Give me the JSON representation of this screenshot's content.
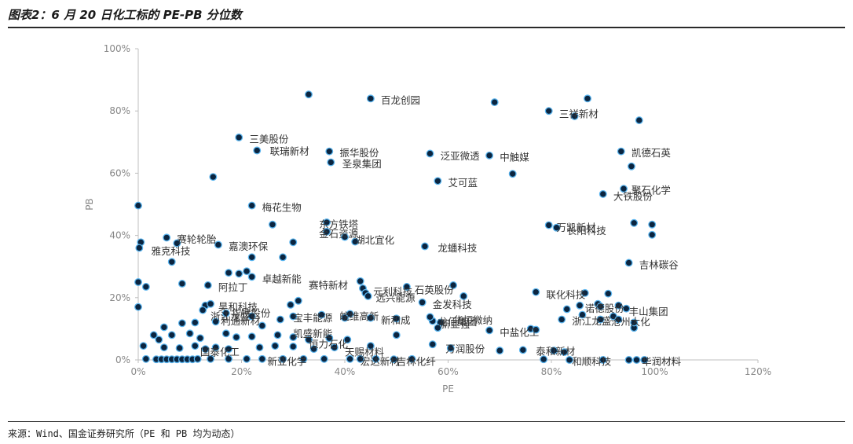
{
  "title": "图表2：6 月 20 日化工标的 PE-PB 分位数",
  "source": "来源：Wind、国金证券研究所（PE 和 PB 均为动态）",
  "colors": {
    "point_fill": "#0b2540",
    "point_stroke": "#5ab4ee",
    "axis": "#bfbfbf",
    "text": "#333333"
  },
  "chart_data": {
    "type": "scatter",
    "xlabel": "PE",
    "ylabel": "PB",
    "xlim": [
      0,
      120
    ],
    "ylim": [
      0,
      100
    ],
    "xticks": [
      0,
      20,
      40,
      60,
      80,
      100,
      120
    ],
    "yticks": [
      0,
      20,
      40,
      60,
      80,
      100
    ],
    "xtick_labels": [
      "0%",
      "20%",
      "40%",
      "60%",
      "80%",
      "100%",
      "120%"
    ],
    "ytick_labels": [
      "0%",
      "20%",
      "40%",
      "60%",
      "80%",
      "100%"
    ],
    "grid": false,
    "legend": "none",
    "points": [
      {
        "x": 33,
        "y": 85.3
      },
      {
        "x": 45,
        "y": 84
      },
      {
        "x": 69,
        "y": 82.8
      },
      {
        "x": 87,
        "y": 84
      },
      {
        "x": 79.5,
        "y": 80
      },
      {
        "x": 84.5,
        "y": 78.3
      },
      {
        "x": 97,
        "y": 77
      },
      {
        "x": 19.5,
        "y": 71.5
      },
      {
        "x": 23,
        "y": 67.3
      },
      {
        "x": 37,
        "y": 67
      },
      {
        "x": 37.3,
        "y": 63.5
      },
      {
        "x": 56.5,
        "y": 66.3
      },
      {
        "x": 68,
        "y": 65.7
      },
      {
        "x": 93.5,
        "y": 67
      },
      {
        "x": 95.5,
        "y": 62.2
      },
      {
        "x": 14.5,
        "y": 58.8
      },
      {
        "x": 72.5,
        "y": 59.8
      },
      {
        "x": 58,
        "y": 57.5
      },
      {
        "x": 94,
        "y": 55
      },
      {
        "x": 90,
        "y": 53.3
      },
      {
        "x": 0,
        "y": 49.6
      },
      {
        "x": 22,
        "y": 49.6
      },
      {
        "x": 36.5,
        "y": 44.2
      },
      {
        "x": 36.5,
        "y": 41.2
      },
      {
        "x": 26,
        "y": 43.5
      },
      {
        "x": 79.5,
        "y": 43.3
      },
      {
        "x": 81,
        "y": 42.5
      },
      {
        "x": 96,
        "y": 44
      },
      {
        "x": 99.5,
        "y": 43.5
      },
      {
        "x": 99.5,
        "y": 40.2
      },
      {
        "x": 40,
        "y": 39.5
      },
      {
        "x": 42,
        "y": 38
      },
      {
        "x": 5.5,
        "y": 39.3
      },
      {
        "x": 7.5,
        "y": 37.5
      },
      {
        "x": 0.5,
        "y": 37.8
      },
      {
        "x": 0.2,
        "y": 36
      },
      {
        "x": 15.5,
        "y": 37
      },
      {
        "x": 30,
        "y": 37.8
      },
      {
        "x": 55.5,
        "y": 36.5
      },
      {
        "x": 22,
        "y": 33
      },
      {
        "x": 28,
        "y": 33
      },
      {
        "x": 6.5,
        "y": 31.5
      },
      {
        "x": 95,
        "y": 31.2
      },
      {
        "x": 17.5,
        "y": 28
      },
      {
        "x": 19.5,
        "y": 27.7
      },
      {
        "x": 21,
        "y": 28.5
      },
      {
        "x": 22,
        "y": 26.7
      },
      {
        "x": 0,
        "y": 25
      },
      {
        "x": 1.5,
        "y": 23.5
      },
      {
        "x": 8.5,
        "y": 24.5
      },
      {
        "x": 13.5,
        "y": 24
      },
      {
        "x": 43,
        "y": 25.3
      },
      {
        "x": 43.5,
        "y": 23
      },
      {
        "x": 44,
        "y": 21.5
      },
      {
        "x": 44.5,
        "y": 20.5
      },
      {
        "x": 52,
        "y": 23.5
      },
      {
        "x": 61,
        "y": 24
      },
      {
        "x": 63,
        "y": 20.5
      },
      {
        "x": 77,
        "y": 21.8
      },
      {
        "x": 86.5,
        "y": 21.5
      },
      {
        "x": 91,
        "y": 21.3
      },
      {
        "x": 0,
        "y": 17
      },
      {
        "x": 13,
        "y": 17.5
      },
      {
        "x": 14,
        "y": 18
      },
      {
        "x": 12.5,
        "y": 16
      },
      {
        "x": 31,
        "y": 19
      },
      {
        "x": 29.5,
        "y": 17.7
      },
      {
        "x": 55,
        "y": 18.5
      },
      {
        "x": 83,
        "y": 16.3
      },
      {
        "x": 85.5,
        "y": 17.5
      },
      {
        "x": 89,
        "y": 18
      },
      {
        "x": 89.5,
        "y": 17.2
      },
      {
        "x": 93,
        "y": 17.5
      },
      {
        "x": 94.5,
        "y": 16.5
      },
      {
        "x": 5,
        "y": 10.5
      },
      {
        "x": 8.5,
        "y": 11.8
      },
      {
        "x": 11,
        "y": 12
      },
      {
        "x": 15,
        "y": 12.3
      },
      {
        "x": 17,
        "y": 15
      },
      {
        "x": 22,
        "y": 14
      },
      {
        "x": 24,
        "y": 11
      },
      {
        "x": 27.5,
        "y": 13
      },
      {
        "x": 30,
        "y": 14
      },
      {
        "x": 35.5,
        "y": 14.5
      },
      {
        "x": 40,
        "y": 13.5
      },
      {
        "x": 41,
        "y": 14.8
      },
      {
        "x": 45,
        "y": 13.5
      },
      {
        "x": 50,
        "y": 13.3
      },
      {
        "x": 57,
        "y": 12.5
      },
      {
        "x": 56.5,
        "y": 13.8
      },
      {
        "x": 58.5,
        "y": 12
      },
      {
        "x": 58,
        "y": 10.3
      },
      {
        "x": 68,
        "y": 9.5
      },
      {
        "x": 76,
        "y": 10
      },
      {
        "x": 77,
        "y": 9.7
      },
      {
        "x": 82,
        "y": 13
      },
      {
        "x": 86,
        "y": 14.5
      },
      {
        "x": 89.5,
        "y": 13
      },
      {
        "x": 92,
        "y": 14
      },
      {
        "x": 93,
        "y": 13
      },
      {
        "x": 96,
        "y": 10.3
      },
      {
        "x": 96,
        "y": 12
      },
      {
        "x": 3,
        "y": 8
      },
      {
        "x": 4,
        "y": 6.5
      },
      {
        "x": 6.5,
        "y": 8
      },
      {
        "x": 10,
        "y": 8.5
      },
      {
        "x": 12,
        "y": 7
      },
      {
        "x": 17,
        "y": 8.5
      },
      {
        "x": 19,
        "y": 7.3
      },
      {
        "x": 22,
        "y": 7.5
      },
      {
        "x": 27,
        "y": 8
      },
      {
        "x": 30,
        "y": 7.3
      },
      {
        "x": 33,
        "y": 6.5
      },
      {
        "x": 37,
        "y": 7
      },
      {
        "x": 40.5,
        "y": 6.5
      },
      {
        "x": 50,
        "y": 8
      },
      {
        "x": 1,
        "y": 4.5
      },
      {
        "x": 5,
        "y": 4
      },
      {
        "x": 8,
        "y": 3.8
      },
      {
        "x": 11,
        "y": 4.5
      },
      {
        "x": 13,
        "y": 3.5
      },
      {
        "x": 15,
        "y": 4
      },
      {
        "x": 17.5,
        "y": 3.5
      },
      {
        "x": 23.5,
        "y": 4
      },
      {
        "x": 26.5,
        "y": 4.5
      },
      {
        "x": 30,
        "y": 4.3
      },
      {
        "x": 34,
        "y": 3.5
      },
      {
        "x": 38,
        "y": 4
      },
      {
        "x": 45,
        "y": 4.5
      },
      {
        "x": 57,
        "y": 5
      },
      {
        "x": 60.5,
        "y": 3.8
      },
      {
        "x": 70,
        "y": 3
      },
      {
        "x": 74.5,
        "y": 3.2
      },
      {
        "x": 80.5,
        "y": 3
      },
      {
        "x": 82.5,
        "y": 2.5
      },
      {
        "x": 1.5,
        "y": 0.3
      },
      {
        "x": 3.5,
        "y": 0.2
      },
      {
        "x": 4.5,
        "y": 0.2
      },
      {
        "x": 5.5,
        "y": 0.2
      },
      {
        "x": 6.5,
        "y": 0.2
      },
      {
        "x": 7.5,
        "y": 0.2
      },
      {
        "x": 8.5,
        "y": 0.2
      },
      {
        "x": 9.5,
        "y": 0.2
      },
      {
        "x": 10.5,
        "y": 0.2
      },
      {
        "x": 11.5,
        "y": 0.3
      },
      {
        "x": 14,
        "y": 0.3
      },
      {
        "x": 17.5,
        "y": 0.3
      },
      {
        "x": 21,
        "y": 0.3
      },
      {
        "x": 24,
        "y": 0.3
      },
      {
        "x": 28,
        "y": 0.3
      },
      {
        "x": 32,
        "y": 0.3
      },
      {
        "x": 36,
        "y": 0.3
      },
      {
        "x": 41,
        "y": 0.3
      },
      {
        "x": 43,
        "y": 0.3
      },
      {
        "x": 46,
        "y": 0.3
      },
      {
        "x": 49.5,
        "y": 0.2
      },
      {
        "x": 53,
        "y": 0.3
      },
      {
        "x": 78.5,
        "y": 0.2
      },
      {
        "x": 83.5,
        "y": 0
      },
      {
        "x": 90,
        "y": 0
      },
      {
        "x": 95,
        "y": 0
      },
      {
        "x": 96.5,
        "y": 0
      },
      {
        "x": 98,
        "y": 0
      }
    ],
    "annotations": [
      {
        "text": "百龙创园",
        "x": 47,
        "y": 83.5
      },
      {
        "text": "三祥新材",
        "x": 81.5,
        "y": 79
      },
      {
        "text": "三美股份",
        "x": 21.5,
        "y": 71
      },
      {
        "text": "联瑞新材",
        "x": 25.5,
        "y": 67
      },
      {
        "text": "振华股份",
        "x": 39,
        "y": 66.5
      },
      {
        "text": "圣泉集团",
        "x": 39.5,
        "y": 63
      },
      {
        "text": "泛亚微透",
        "x": 58.5,
        "y": 65.5
      },
      {
        "text": "中触媒",
        "x": 70,
        "y": 65.2
      },
      {
        "text": "凯德石英",
        "x": 95.5,
        "y": 66.5
      },
      {
        "text": "艾可蓝",
        "x": 60,
        "y": 57
      },
      {
        "text": "聚石化学",
        "x": 95.5,
        "y": 54.5
      },
      {
        "text": "大铁股份",
        "x": 92,
        "y": 52.5
      },
      {
        "text": "梅花生物",
        "x": 24,
        "y": 49
      },
      {
        "text": "东方铁塔",
        "x": 35,
        "y": 43.5
      },
      {
        "text": "金石资源",
        "x": 35,
        "y": 40.5
      },
      {
        "text": "湖北宜化",
        "x": 42,
        "y": 38.5
      },
      {
        "text": "万凯新材",
        "x": 81,
        "y": 42.5
      },
      {
        "text": "长阳科技",
        "x": 83,
        "y": 41.5
      },
      {
        "text": "赛轮轮胎",
        "x": 7.5,
        "y": 38.8
      },
      {
        "text": "雅克科技",
        "x": 2.5,
        "y": 35
      },
      {
        "text": "嘉澳环保",
        "x": 17.5,
        "y": 36.5
      },
      {
        "text": "龙蟠科技",
        "x": 58,
        "y": 36
      },
      {
        "text": "吉林碳谷",
        "x": 97,
        "y": 30.5
      },
      {
        "text": "卓越新能",
        "x": 24,
        "y": 26
      },
      {
        "text": "阿拉丁",
        "x": 15.5,
        "y": 23.3
      },
      {
        "text": "赛特新材",
        "x": 33,
        "y": 24
      },
      {
        "text": "元利科技",
        "x": 45.5,
        "y": 22
      },
      {
        "text": "石英股份",
        "x": 53.5,
        "y": 22.5
      },
      {
        "text": "远兴能源",
        "x": 46,
        "y": 20
      },
      {
        "text": "联化科技",
        "x": 79,
        "y": 21
      },
      {
        "text": "金发科技",
        "x": 57,
        "y": 17.8
      },
      {
        "text": "昊和科技",
        "x": 15.5,
        "y": 17
      },
      {
        "text": "华特股份",
        "x": 18,
        "y": 15
      },
      {
        "text": "浙江龙盛",
        "x": 14,
        "y": 14
      },
      {
        "text": "利通新材",
        "x": 16,
        "y": 12.5
      },
      {
        "text": "宝丰能源",
        "x": 30,
        "y": 13.5
      },
      {
        "text": "皖维高新",
        "x": 39,
        "y": 14
      },
      {
        "text": "新和成",
        "x": 47,
        "y": 12.8
      },
      {
        "text": "龙佰集团",
        "x": 58,
        "y": 12.2
      },
      {
        "text": "华恒微纳",
        "x": 61,
        "y": 12.8
      },
      {
        "text": "新亚强",
        "x": 58.5,
        "y": 11.5
      },
      {
        "text": "中盐化工",
        "x": 70,
        "y": 8.8
      },
      {
        "text": "浙江龙盛",
        "x": 84,
        "y": 12.5
      },
      {
        "text": "沧州大化",
        "x": 91.5,
        "y": 12.2
      },
      {
        "text": "丰山集团",
        "x": 95,
        "y": 15.5
      },
      {
        "text": "诺德股份",
        "x": 86.5,
        "y": 16.5
      },
      {
        "text": "凯盛新能",
        "x": 30,
        "y": 8.5
      },
      {
        "text": "恒力石化",
        "x": 33,
        "y": 5
      },
      {
        "text": "天赐材料",
        "x": 40,
        "y": 2.5
      },
      {
        "text": "国泰化工",
        "x": 12,
        "y": 2.5
      },
      {
        "text": "万润股份",
        "x": 59.5,
        "y": 3.5
      },
      {
        "text": "泰和新材",
        "x": 77,
        "y": 2.8
      },
      {
        "text": "和顺科技",
        "x": 84,
        "y": -0.5
      },
      {
        "text": "华润材料",
        "x": 97.5,
        "y": -0.5
      },
      {
        "text": "吉林化纤",
        "x": 50,
        "y": -0.5
      },
      {
        "text": "宏达新材",
        "x": 43,
        "y": -0.5
      },
      {
        "text": "新亚化学",
        "x": 25,
        "y": -0.5
      }
    ]
  }
}
